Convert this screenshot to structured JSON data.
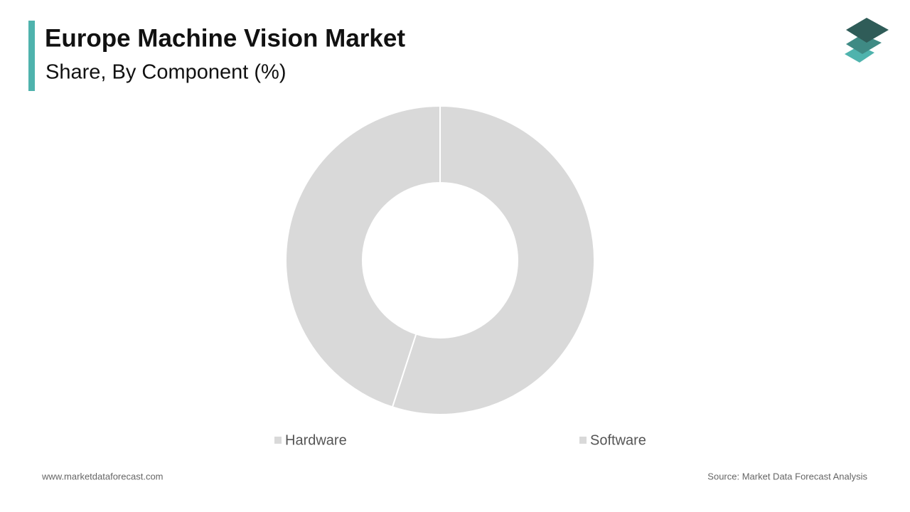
{
  "chart_data": {
    "type": "pie",
    "donut": true,
    "title": "Europe Machine Vision Market",
    "subtitle": "Share, By Component (%)",
    "categories": [
      "Hardware",
      "Software"
    ],
    "values": [
      55,
      45
    ],
    "colors": [
      "#d9d9d9",
      "#d9d9d9"
    ],
    "legend": "bottom"
  },
  "footer": {
    "website": "www.marketdataforecast.com",
    "source": "Source: Market Data Forecast Analysis"
  }
}
